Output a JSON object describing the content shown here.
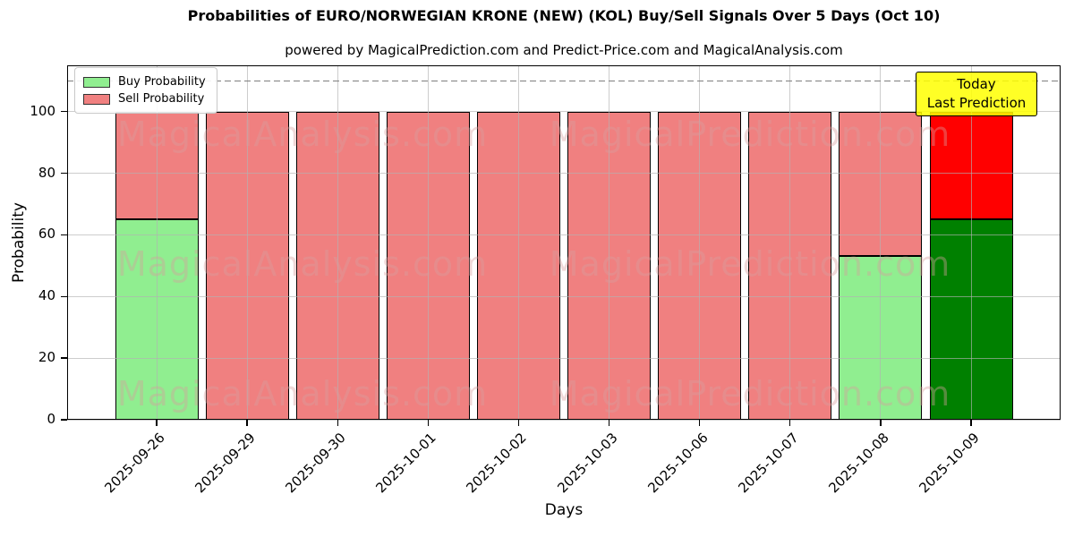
{
  "title": "Probabilities of EURO/NORWEGIAN KRONE (NEW) (KOL) Buy/Sell Signals Over 5 Days (Oct 10)",
  "subtitle": "powered by MagicalPrediction.com and Predict-Price.com and MagicalAnalysis.com",
  "axes": {
    "xlabel": "Days",
    "ylabel": "Probability"
  },
  "watermark": {
    "left_text": "MagicalAnalysis.com",
    "right_text": "MagicalPrediction.com"
  },
  "annotation": {
    "line1": "Today",
    "line2": "Last Prediction",
    "bg_color": "#FFFF00"
  },
  "legend": {
    "position": "upper left",
    "items": [
      {
        "label": "Buy Probability",
        "color": "#90EE90"
      },
      {
        "label": "Sell Probability",
        "color": "#F08080"
      }
    ]
  },
  "chart_data": {
    "type": "bar",
    "stacked": true,
    "title": "Probabilities of EURO/NORWEGIAN KRONE (NEW) (KOL) Buy/Sell Signals Over 5 Days (Oct 10)",
    "xlabel": "Days",
    "ylabel": "Probability",
    "categories": [
      "2025-09-26",
      "2025-09-29",
      "2025-09-30",
      "2025-10-01",
      "2025-10-02",
      "2025-10-03",
      "2025-10-06",
      "2025-10-07",
      "2025-10-08",
      "2025-10-09"
    ],
    "series": [
      {
        "name": "Buy Probability",
        "values": [
          65,
          0,
          0,
          0,
          0,
          0,
          0,
          0,
          53,
          65
        ],
        "colors": [
          "#90EE90",
          "#90EE90",
          "#90EE90",
          "#90EE90",
          "#90EE90",
          "#90EE90",
          "#90EE90",
          "#90EE90",
          "#90EE90",
          "#008000"
        ]
      },
      {
        "name": "Sell Probability",
        "values": [
          35,
          100,
          100,
          100,
          100,
          100,
          100,
          100,
          47,
          35
        ],
        "colors": [
          "#F08080",
          "#F08080",
          "#F08080",
          "#F08080",
          "#F08080",
          "#F08080",
          "#F08080",
          "#F08080",
          "#F08080",
          "#FF0000"
        ]
      }
    ],
    "ylim": [
      0,
      115
    ],
    "yticks": [
      0,
      20,
      40,
      60,
      80,
      100
    ],
    "threshold_line": {
      "y": 110,
      "style": "dashed",
      "color": "#7f7f7f"
    },
    "grid": true,
    "bar_edge_color": "#000000",
    "legend_position": "upper left"
  }
}
